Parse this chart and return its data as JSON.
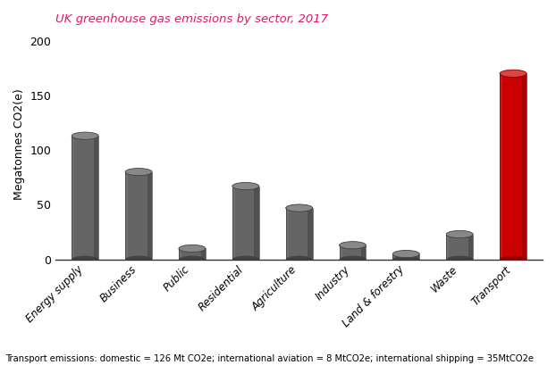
{
  "title": "UK greenhouse gas emissions by sector, 2017",
  "title_color": "#E0186C",
  "ylabel": "Megatonnes CO2(e)",
  "categories": [
    "Energy supply",
    "Business",
    "Public",
    "Residential",
    "Agriculture",
    "Industry",
    "Land & forestry",
    "Waste",
    "Transport"
  ],
  "values": [
    113,
    80,
    10,
    67,
    47,
    13,
    5,
    23,
    170
  ],
  "bar_colors": [
    "#656565",
    "#656565",
    "#656565",
    "#656565",
    "#656565",
    "#656565",
    "#656565",
    "#656565",
    "#CC0000"
  ],
  "bar_dark_colors": [
    "#404040",
    "#404040",
    "#404040",
    "#404040",
    "#404040",
    "#404040",
    "#404040",
    "#404040",
    "#880000"
  ],
  "bar_light_colors": [
    "#888888",
    "#888888",
    "#888888",
    "#888888",
    "#888888",
    "#888888",
    "#888888",
    "#888888",
    "#DD4444"
  ],
  "ylim": [
    0,
    210
  ],
  "yticks": [
    0,
    50,
    100,
    150,
    200
  ],
  "footnote": "Transport emissions: domestic = 126 Mt CO2e; international aviation = 8 MtCO2e; international shipping = 35MtCO2e",
  "background_color": "#ffffff",
  "bar_width": 0.5,
  "cap_ratio": 0.032
}
